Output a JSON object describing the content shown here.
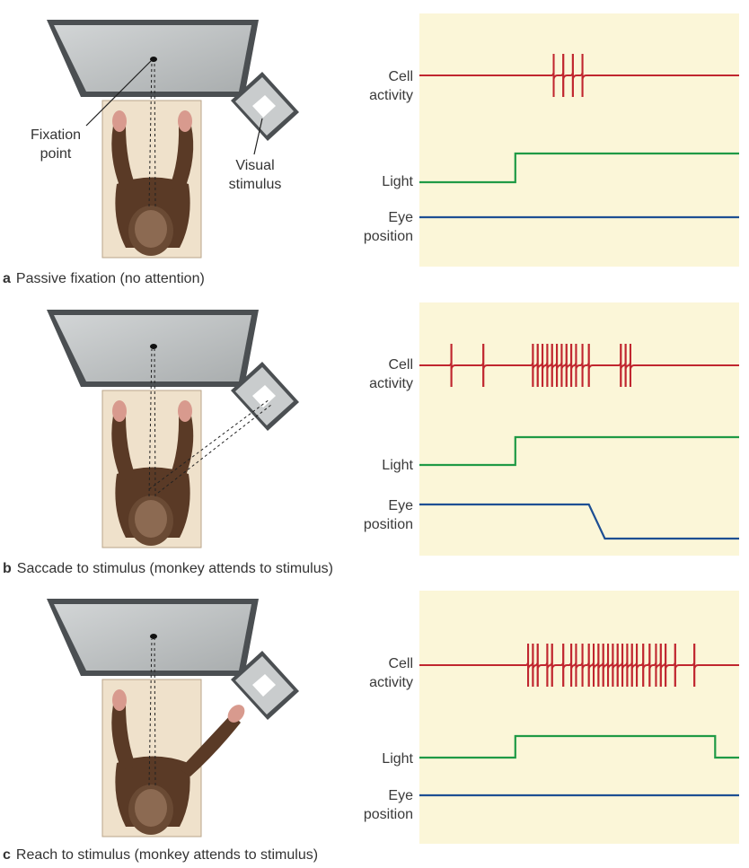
{
  "colors": {
    "cell_activity": "#c0262f",
    "light": "#1f9a45",
    "eye_position": "#1d4f93",
    "plot_background": "#fbf6d8",
    "screen_gray": "#b8bcbd",
    "fur": "#5a3a26"
  },
  "labels": {
    "fixation_point": [
      "Fixation",
      "point"
    ],
    "visual_stimulus": [
      "Visual",
      "stimulus"
    ],
    "cell_activity": [
      "Cell",
      "activity"
    ],
    "light": "Light",
    "eye_position": [
      "Eye",
      "position"
    ]
  },
  "panels": [
    {
      "letter": "a",
      "caption": "Passive fixation (no attention)",
      "arms": "up",
      "gaze_to_stimulus": false,
      "spikes": [
        0.42,
        0.45,
        0.48,
        0.51
      ],
      "light_on": [
        0.3,
        1.0
      ],
      "eye_shift": null
    },
    {
      "letter": "b",
      "caption": "Saccade to stimulus (monkey attends to stimulus)",
      "arms": "up",
      "gaze_to_stimulus": true,
      "spikes": [
        0.1,
        0.2,
        0.355,
        0.37,
        0.385,
        0.4,
        0.415,
        0.43,
        0.445,
        0.46,
        0.475,
        0.49,
        0.51,
        0.53,
        0.63,
        0.645,
        0.66
      ],
      "light_on": [
        0.3,
        1.0
      ],
      "eye_shift": [
        0.53,
        0.58
      ]
    },
    {
      "letter": "c",
      "caption": "Reach to stimulus (monkey attends to stimulus)",
      "arms": "reach",
      "gaze_to_stimulus": false,
      "spikes": [
        0.34,
        0.355,
        0.37,
        0.4,
        0.415,
        0.45,
        0.475,
        0.49,
        0.51,
        0.53,
        0.545,
        0.56,
        0.575,
        0.59,
        0.605,
        0.62,
        0.635,
        0.65,
        0.665,
        0.68,
        0.7,
        0.72,
        0.74,
        0.755,
        0.77,
        0.8,
        0.86
      ],
      "light_on": [
        0.3,
        0.925
      ],
      "eye_shift": null
    }
  ]
}
